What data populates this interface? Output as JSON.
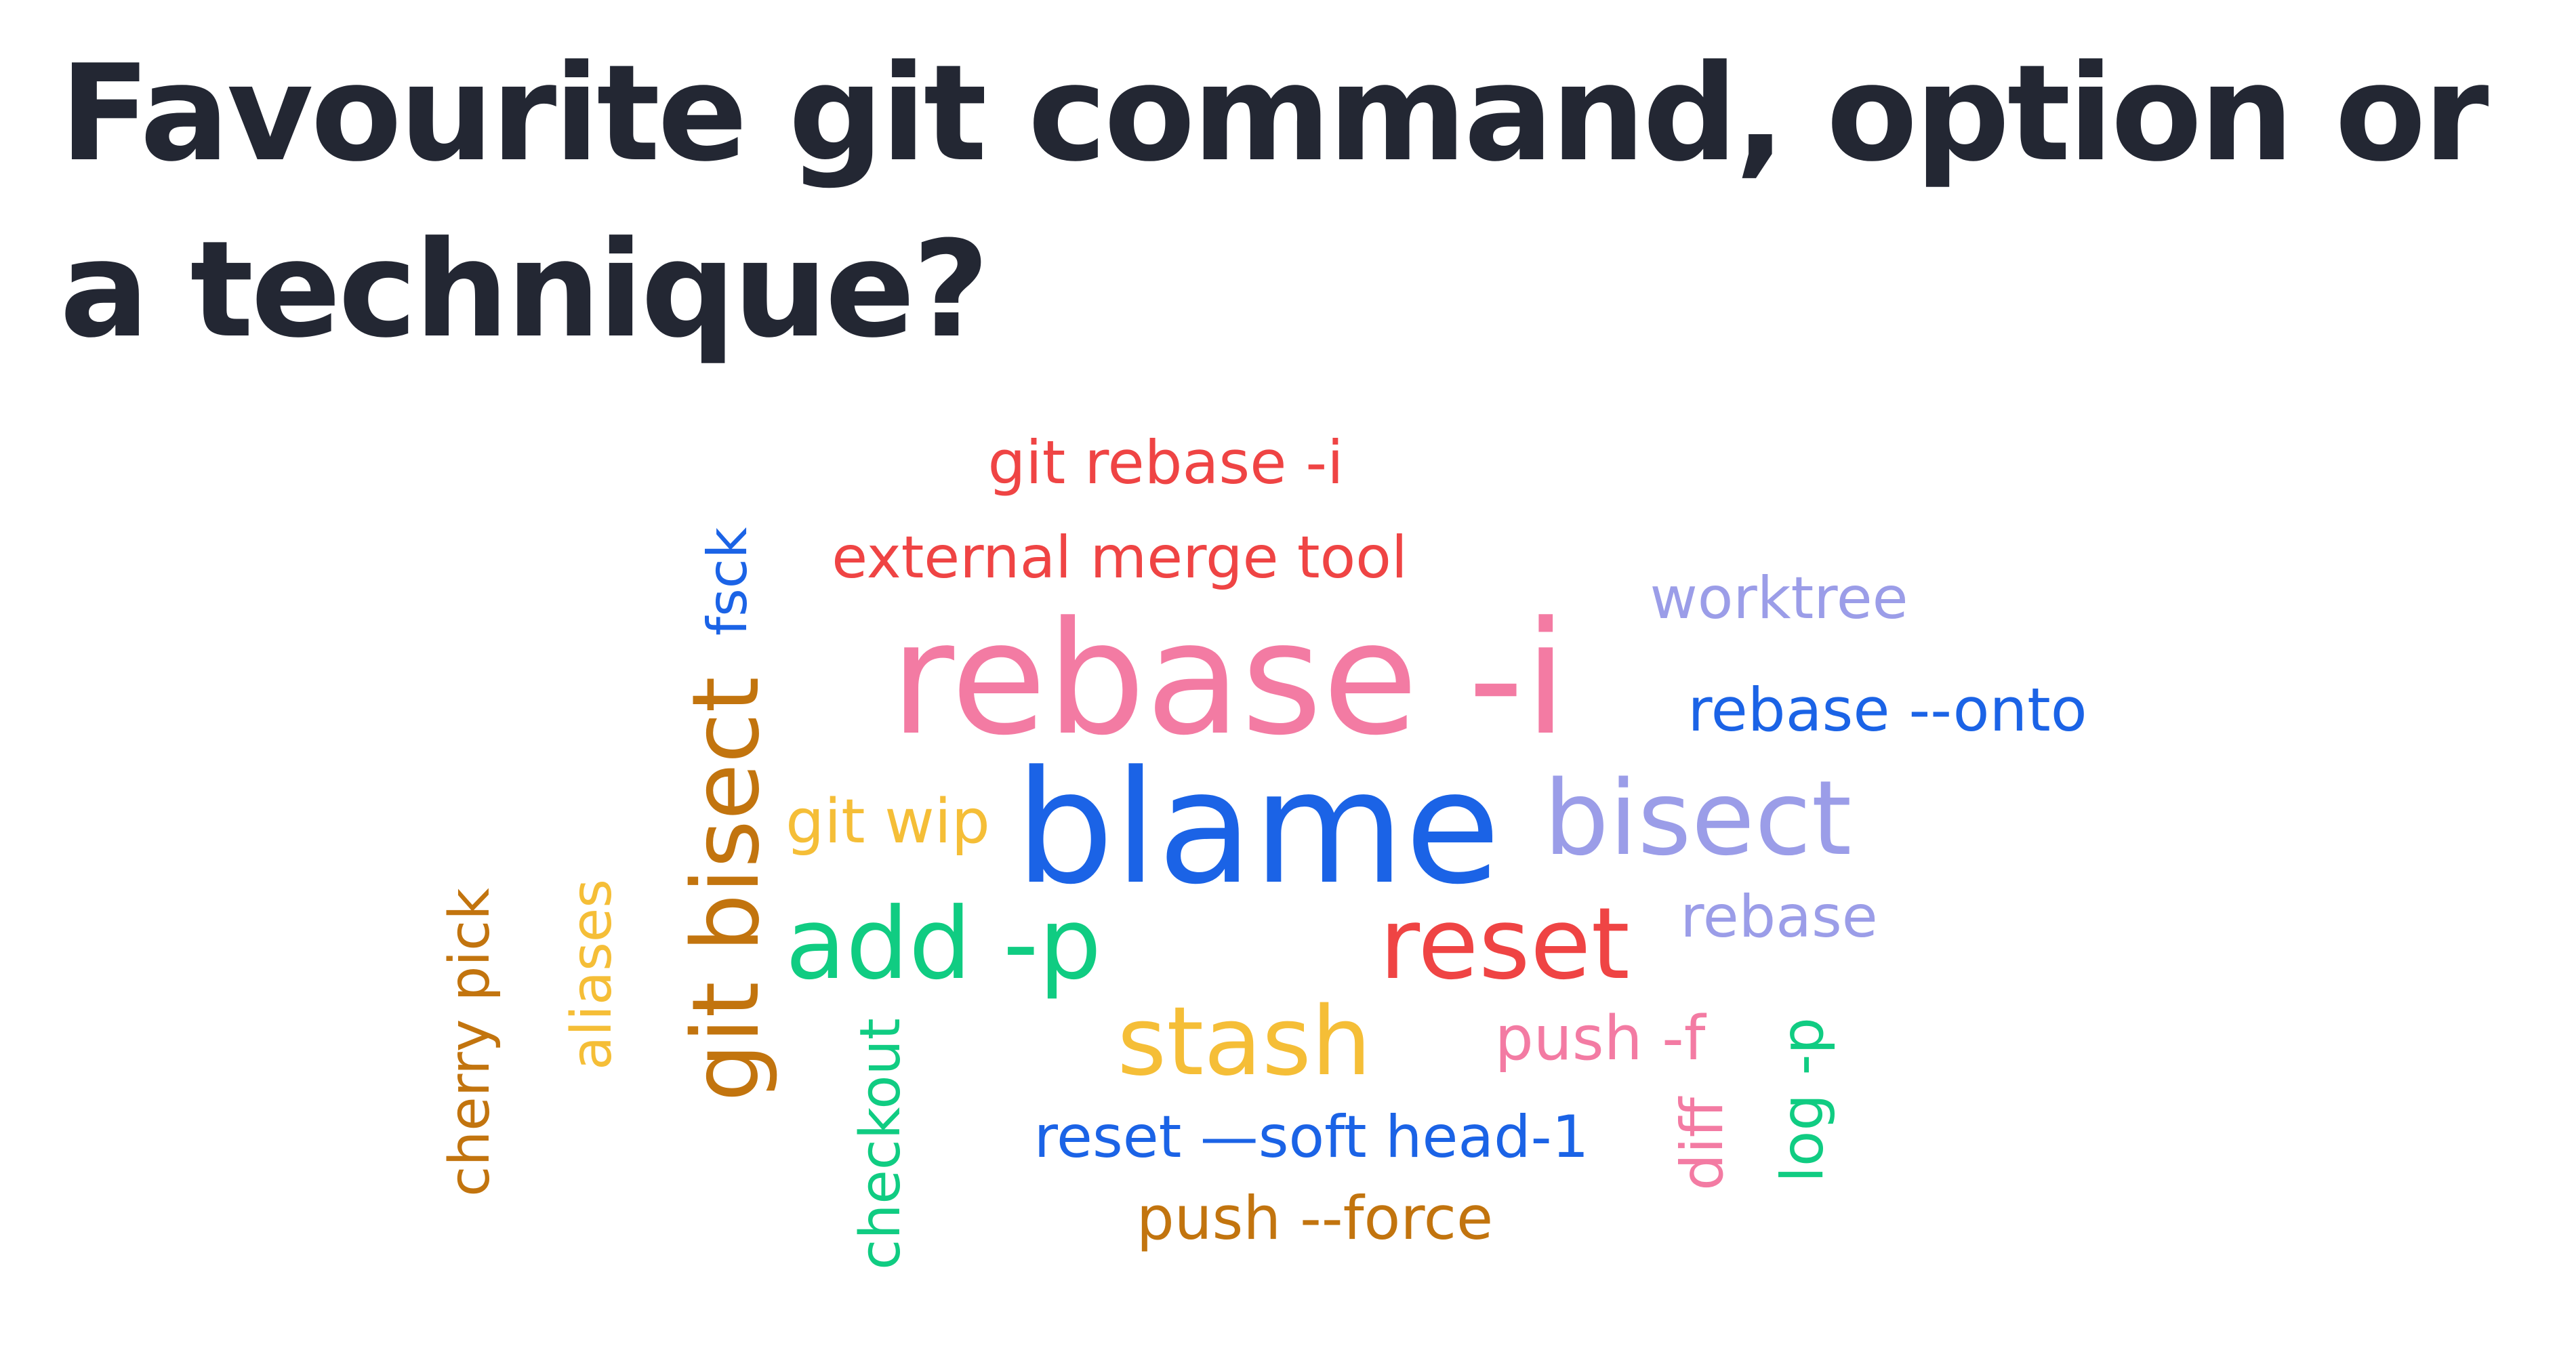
{
  "title": "Favourite git command, option or a technique?",
  "colors": {
    "title": "#232733",
    "red": "#ef4444",
    "blue": "#1b63e6",
    "pink": "#f37ba3",
    "lavender": "#9b9de8",
    "yellow": "#f5be37",
    "brown": "#c2740e",
    "green": "#10cc82"
  },
  "words": [
    {
      "text": "git rebase -i",
      "color": "red"
    },
    {
      "text": "external merge tool",
      "color": "red"
    },
    {
      "text": "fsck",
      "color": "blue"
    },
    {
      "text": "worktree",
      "color": "lavender"
    },
    {
      "text": "rebase -i",
      "color": "pink"
    },
    {
      "text": "rebase --onto",
      "color": "blue"
    },
    {
      "text": "git bisect",
      "color": "brown"
    },
    {
      "text": "git wip",
      "color": "yellow"
    },
    {
      "text": "blame",
      "color": "blue"
    },
    {
      "text": "bisect",
      "color": "lavender"
    },
    {
      "text": "cherry pick",
      "color": "brown"
    },
    {
      "text": "aliases",
      "color": "yellow"
    },
    {
      "text": "add -p",
      "color": "green"
    },
    {
      "text": "reset",
      "color": "red"
    },
    {
      "text": "rebase",
      "color": "lavender"
    },
    {
      "text": "stash",
      "color": "yellow"
    },
    {
      "text": "push -f",
      "color": "pink"
    },
    {
      "text": "log -p",
      "color": "green"
    },
    {
      "text": "checkout",
      "color": "green"
    },
    {
      "text": "reset —soft head-1",
      "color": "blue"
    },
    {
      "text": "diff",
      "color": "pink"
    },
    {
      "text": "push --force",
      "color": "brown"
    }
  ]
}
